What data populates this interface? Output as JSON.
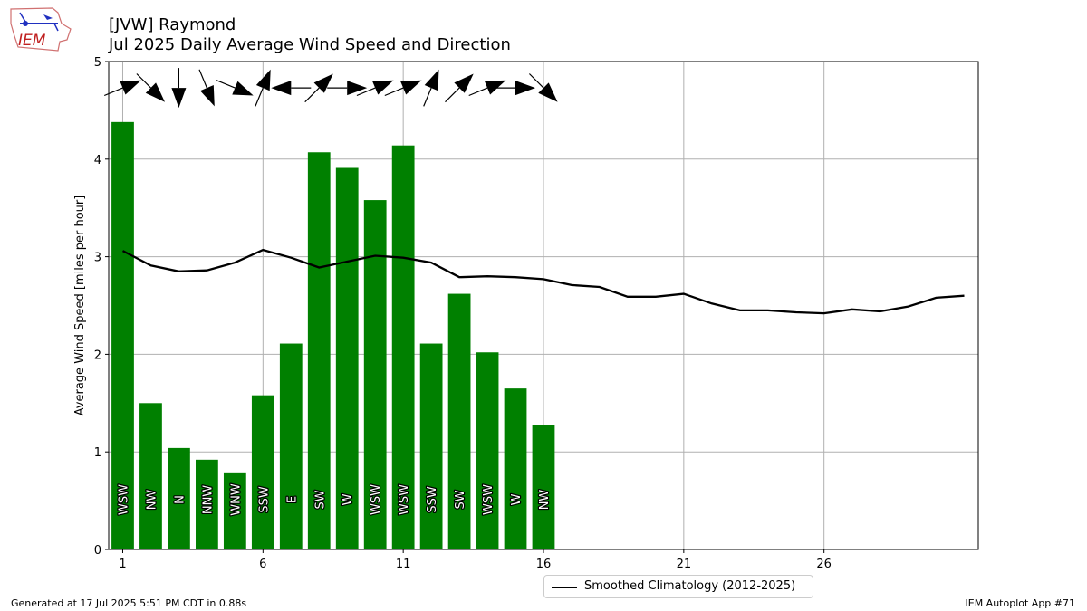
{
  "header": {
    "title_line1": "[JVW] Raymond",
    "title_line2": "Jul 2025 Daily Average Wind Speed and Direction",
    "logo_text": "IEM"
  },
  "footer": {
    "generated": "Generated at 17 Jul 2025 5:51 PM CDT in 0.88s",
    "app": "IEM Autoplot App #71"
  },
  "legend": {
    "climatology_label": "Smoothed Climatology (2012-2025)"
  },
  "colors": {
    "bar": "#008000",
    "climatology": "#000000",
    "grid": "#b0b0b0",
    "arrow": "#000000"
  },
  "chart_data": {
    "type": "bar",
    "ylabel": "Average Wind Speed [miles per hour]",
    "xlabel": "",
    "ylim": [
      0,
      5
    ],
    "xlim": [
      0.5,
      31.5
    ],
    "yticks": [
      0,
      1,
      2,
      3,
      4,
      5
    ],
    "xticks": [
      1,
      6,
      11,
      16,
      21,
      26
    ],
    "grid": true,
    "legend_position": "bottom-center",
    "days": [
      1,
      2,
      3,
      4,
      5,
      6,
      7,
      8,
      9,
      10,
      11,
      12,
      13,
      14,
      15,
      16
    ],
    "speed": [
      4.38,
      1.5,
      1.04,
      0.92,
      0.79,
      1.58,
      2.11,
      4.07,
      3.91,
      3.58,
      4.14,
      2.11,
      2.62,
      2.02,
      1.65,
      1.28
    ],
    "direction_text": [
      "WSW",
      "NW",
      "N",
      "NNW",
      "WNW",
      "SSW",
      "E",
      "SW",
      "W",
      "WSW",
      "WSW",
      "SSW",
      "SW",
      "WSW",
      "W",
      "NW"
    ],
    "direction_deg": [
      247.5,
      315,
      0,
      337.5,
      292.5,
      202.5,
      90,
      225,
      270,
      247.5,
      247.5,
      202.5,
      225,
      247.5,
      270,
      315
    ],
    "climatology": {
      "name": "Smoothed Climatology (2012-2025)",
      "x": [
        1,
        2,
        3,
        4,
        5,
        6,
        7,
        8,
        9,
        10,
        11,
        12,
        13,
        14,
        15,
        16,
        17,
        18,
        19,
        20,
        21,
        22,
        23,
        24,
        25,
        26,
        27,
        28,
        29,
        30,
        31
      ],
      "values": [
        3.06,
        2.91,
        2.85,
        2.86,
        2.94,
        3.07,
        2.99,
        2.89,
        2.95,
        3.01,
        2.99,
        2.94,
        2.79,
        2.8,
        2.79,
        2.77,
        2.71,
        2.69,
        2.59,
        2.59,
        2.62,
        2.52,
        2.45,
        2.45,
        2.43,
        2.42,
        2.46,
        2.44,
        2.49,
        2.58,
        2.6
      ]
    }
  }
}
